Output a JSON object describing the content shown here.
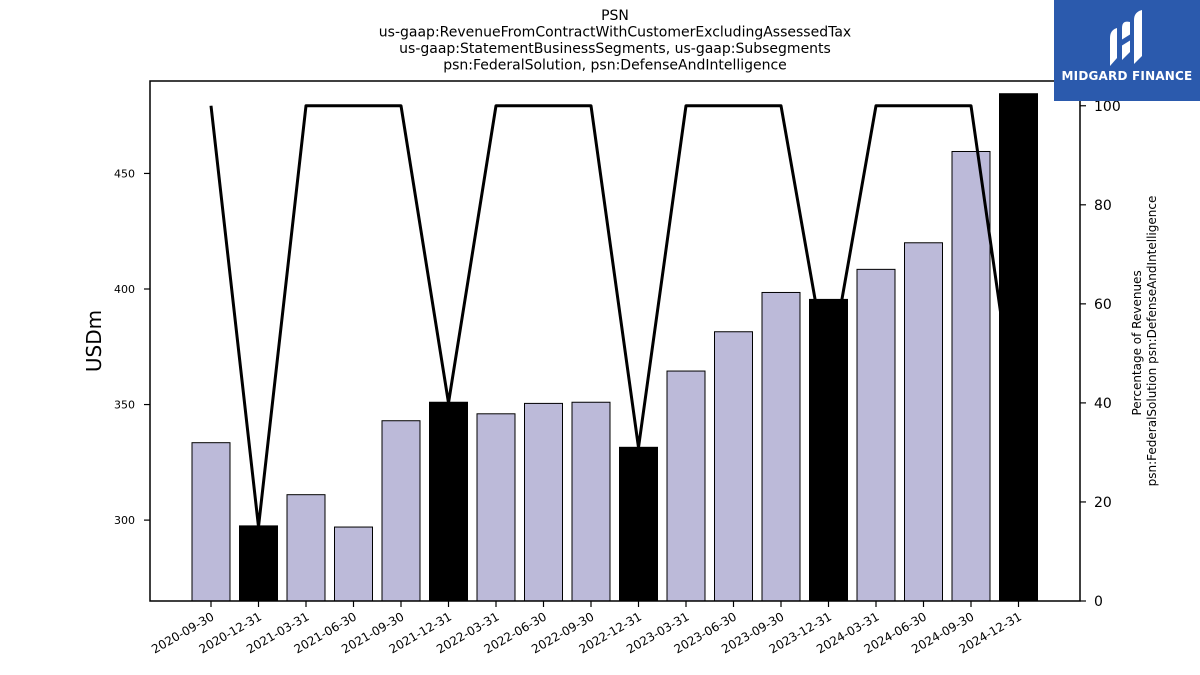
{
  "chart_data": {
    "type": "bar",
    "title_lines": [
      "PSN",
      "us-gaap:RevenueFromContractWithCustomerExcludingAssessedTax",
      "us-gaap:StatementBusinessSegments, us-gaap:Subsegments",
      "psn:FederalSolution, psn:DefenseAndIntelligence"
    ],
    "ylabel": "USDm",
    "ylabel_right": [
      "Percentage of Revenues",
      "psn:FederalSolution psn:DefenseAndIntelligence"
    ],
    "ylim": [
      265,
      490
    ],
    "yticks": [
      300,
      350,
      400,
      450
    ],
    "ylim_right": [
      0,
      105
    ],
    "yticks_right": [
      0,
      20,
      40,
      60,
      80,
      100
    ],
    "categories": [
      "2020-09-30",
      "2020-12-31",
      "2021-03-31",
      "2021-06-30",
      "2021-09-30",
      "2021-12-31",
      "2022-03-31",
      "2022-06-30",
      "2022-09-30",
      "2022-12-31",
      "2023-03-31",
      "2023-06-30",
      "2023-09-30",
      "2023-12-31",
      "2024-03-31",
      "2024-06-30",
      "2024-09-30",
      "2024-12-31"
    ],
    "series": [
      {
        "type": "bar",
        "values": [
          333.5,
          297.5,
          311.0,
          297.0,
          343.0,
          351.0,
          346.0,
          350.5,
          351.0,
          331.5,
          364.5,
          381.5,
          398.5,
          395.5,
          408.5,
          420.0,
          459.5,
          484.5
        ],
        "highlight": [
          false,
          true,
          false,
          false,
          false,
          true,
          false,
          false,
          false,
          true,
          false,
          false,
          false,
          true,
          false,
          false,
          false,
          true
        ]
      },
      {
        "type": "line",
        "axis": "right",
        "values": [
          100,
          15.0,
          100,
          100,
          100,
          40.0,
          100,
          100,
          100,
          31.0,
          100,
          100,
          100,
          45.5,
          100,
          100,
          100,
          33.0
        ]
      }
    ],
    "colors": {
      "bar": "#bcbad9",
      "bar_highlight": "#000000",
      "line": "#000000"
    }
  },
  "logo": {
    "text": "MIDGARD FINANCE",
    "background": "#2b5aad"
  }
}
